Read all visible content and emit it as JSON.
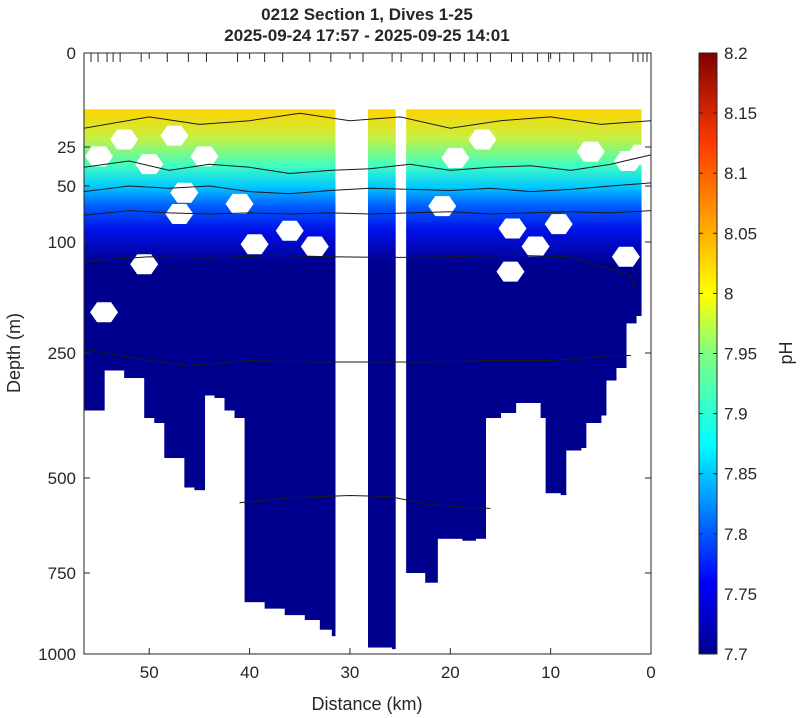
{
  "chart_data": {
    "type": "heatmap",
    "title": "0212 Section 1, Dives 1-25",
    "subtitle": "2025-09-24 17:57 - 2025-09-25 14:01",
    "xlabel": "Distance (km)",
    "ylabel": "Depth (m)",
    "xlim": [
      56.5,
      0
    ],
    "ylim": [
      0,
      1000
    ],
    "x_reversed": true,
    "x_ticks": [
      50,
      40,
      30,
      20,
      10,
      0
    ],
    "y_ticks": [
      0,
      25,
      50,
      100,
      250,
      500,
      750,
      1000
    ],
    "y_scale": "piecewise",
    "colorbar": {
      "label": "pH",
      "range": [
        7.7,
        8.2
      ],
      "ticks": [
        "8.2",
        "8.15",
        "8.1",
        "8.05",
        "8",
        "7.95",
        "7.9",
        "7.85",
        "7.8",
        "7.75",
        "7.7"
      ]
    },
    "data_top_depth": 15,
    "profiles": [
      {
        "x": 56.5,
        "bottom": 365
      },
      {
        "x": 55.5,
        "bottom": 365
      },
      {
        "x": 54.5,
        "bottom": 285
      },
      {
        "x": 53.5,
        "bottom": 285
      },
      {
        "x": 52.5,
        "bottom": 300
      },
      {
        "x": 51.5,
        "bottom": 300
      },
      {
        "x": 50.5,
        "bottom": 380
      },
      {
        "x": 49.5,
        "bottom": 390
      },
      {
        "x": 48.5,
        "bottom": 460
      },
      {
        "x": 47.5,
        "bottom": 460
      },
      {
        "x": 46.5,
        "bottom": 525
      },
      {
        "x": 45.5,
        "bottom": 532
      },
      {
        "x": 44.5,
        "bottom": 335
      },
      {
        "x": 43.5,
        "bottom": 340
      },
      {
        "x": 42.5,
        "bottom": 365
      },
      {
        "x": 41.5,
        "bottom": 380
      },
      {
        "x": 40.5,
        "bottom": 840
      },
      {
        "x": 38.5,
        "bottom": 860
      },
      {
        "x": 36.5,
        "bottom": 880
      },
      {
        "x": 34.5,
        "bottom": 895
      },
      {
        "x": 33.0,
        "bottom": 925
      },
      {
        "x": 31.8,
        "bottom": 945
      },
      {
        "x": 31.5,
        "bottom": null
      },
      {
        "x": 28.5,
        "bottom": null
      },
      {
        "x": 28.2,
        "bottom": 980
      },
      {
        "x": 25.8,
        "bottom": 985
      },
      {
        "x": 25.5,
        "bottom": null
      },
      {
        "x": 24.8,
        "bottom": null
      },
      {
        "x": 24.4,
        "bottom": 750
      },
      {
        "x": 22.5,
        "bottom": 780
      },
      {
        "x": 21.3,
        "bottom": 660
      },
      {
        "x": 18.8,
        "bottom": 665
      },
      {
        "x": 17.5,
        "bottom": 660
      },
      {
        "x": 16.5,
        "bottom": 380
      },
      {
        "x": 15.0,
        "bottom": 370
      },
      {
        "x": 13.5,
        "bottom": 350
      },
      {
        "x": 12.0,
        "bottom": 350
      },
      {
        "x": 11.0,
        "bottom": 380
      },
      {
        "x": 10.5,
        "bottom": 540
      },
      {
        "x": 9.0,
        "bottom": 545
      },
      {
        "x": 8.5,
        "bottom": 445
      },
      {
        "x": 7.0,
        "bottom": 440
      },
      {
        "x": 6.5,
        "bottom": 390
      },
      {
        "x": 5.0,
        "bottom": 375
      },
      {
        "x": 4.5,
        "bottom": 305
      },
      {
        "x": 3.5,
        "bottom": 280
      },
      {
        "x": 2.5,
        "bottom": 210
      },
      {
        "x": 1.5,
        "bottom": 200
      },
      {
        "x": 1.0,
        "bottom": 180
      }
    ],
    "isolines": [
      {
        "pH": 8.05,
        "x": [
          56.5,
          50,
          45,
          40,
          35,
          30,
          25,
          20,
          15,
          10,
          5,
          0
        ],
        "depth": [
          20,
          17,
          19,
          18,
          16,
          18,
          17,
          20,
          18,
          17,
          19,
          18
        ]
      },
      {
        "pH": 8.0,
        "x": [
          56.5,
          52,
          48,
          44,
          40,
          36,
          32,
          28,
          24,
          20,
          16,
          12,
          8,
          4,
          0
        ],
        "depth": [
          38,
          34,
          40,
          36,
          38,
          42,
          40,
          39,
          36,
          40,
          38,
          37,
          40,
          36,
          30
        ]
      },
      {
        "pH": 7.95,
        "x": [
          56.5,
          52,
          48,
          44,
          40,
          36,
          32,
          28,
          24,
          20,
          16,
          12,
          8,
          4,
          0
        ],
        "depth": [
          55,
          50,
          52,
          50,
          55,
          57,
          54,
          52,
          53,
          54,
          52,
          55,
          53,
          50,
          48
        ]
      },
      {
        "pH": 7.85,
        "x": [
          56.5,
          52,
          48,
          44,
          40,
          36,
          32,
          28,
          24,
          20,
          16,
          12,
          8,
          4,
          0
        ],
        "depth": [
          76,
          72,
          74,
          75,
          74,
          75,
          74,
          75,
          74,
          73,
          75,
          74,
          73,
          74,
          72
        ]
      },
      {
        "pH": 7.75,
        "x": [
          56.5,
          50,
          44,
          38,
          32,
          26,
          20,
          14,
          8,
          2,
          1.5
        ],
        "depth": [
          126,
          120,
          122,
          118,
          120,
          121,
          120,
          118,
          120,
          145,
          165
        ]
      },
      {
        "pH": 7.72,
        "x": [
          56.5,
          50,
          46,
          40,
          34,
          28,
          22,
          16,
          10,
          4,
          2
        ],
        "depth": [
          245,
          265,
          275,
          265,
          268,
          268,
          268,
          265,
          265,
          255,
          255
        ]
      },
      {
        "pH": 7.71,
        "x": [
          41,
          36,
          30,
          26,
          22,
          18,
          16
        ],
        "depth": [
          565,
          552,
          546,
          549,
          570,
          578,
          580
        ]
      }
    ],
    "surface_blanks": [
      {
        "x": 55,
        "depth": 31
      },
      {
        "x": 52.5,
        "depth": 23
      },
      {
        "x": 50,
        "depth": 36
      },
      {
        "x": 47.5,
        "depth": 22
      },
      {
        "x": 44.5,
        "depth": 31
      },
      {
        "x": 19.5,
        "depth": 32
      },
      {
        "x": 16.8,
        "depth": 23
      },
      {
        "x": 6,
        "depth": 28
      },
      {
        "x": 2.3,
        "depth": 34
      },
      {
        "x": 1,
        "depth": 30
      },
      {
        "x": 46.5,
        "depth": 56
      },
      {
        "x": 41,
        "depth": 66
      },
      {
        "x": 20.8,
        "depth": 68
      },
      {
        "x": 47,
        "depth": 75
      },
      {
        "x": 36,
        "depth": 90
      },
      {
        "x": 13.8,
        "depth": 88
      },
      {
        "x": 9.2,
        "depth": 84
      },
      {
        "x": 39.5,
        "depth": 103
      },
      {
        "x": 33.5,
        "depth": 106
      },
      {
        "x": 11.5,
        "depth": 106
      },
      {
        "x": 50.5,
        "depth": 130
      },
      {
        "x": 14,
        "depth": 140
      },
      {
        "x": 2.5,
        "depth": 120
      },
      {
        "x": 54.5,
        "depth": 195
      }
    ],
    "dive_marks_km": [
      55.8,
      55.1,
      54.2,
      53.6,
      52.9,
      50.8,
      48.2,
      46.1,
      44.3,
      41.2,
      38.5,
      36.7,
      34.0,
      31.9,
      28.7,
      25.8,
      24.9,
      22.8,
      21.6,
      20.0,
      18.6,
      17.3,
      16.0,
      13.9,
      12.8,
      11.3,
      10.2,
      9.1,
      7.7,
      5.9,
      4.1,
      1.8,
      1.3,
      0.8,
      0.4
    ]
  }
}
